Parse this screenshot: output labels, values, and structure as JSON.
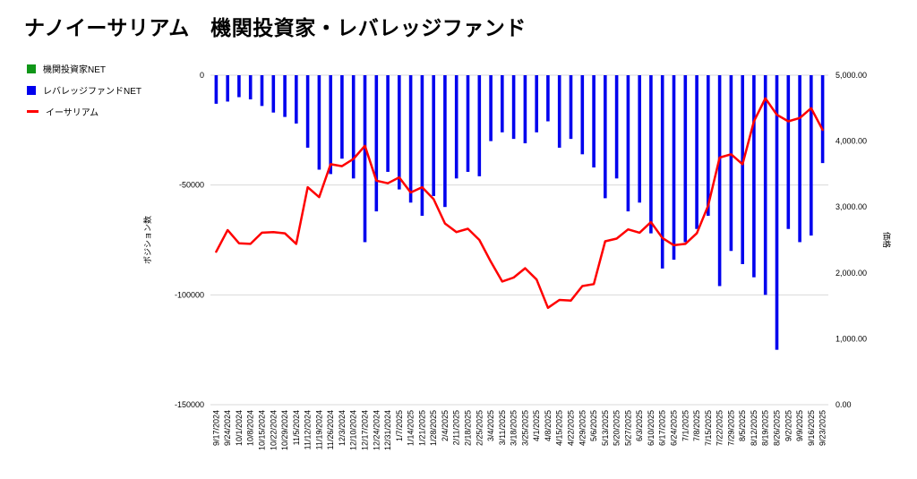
{
  "title": "ナノイーサリアム　機関投資家・レバレッジファンド",
  "legend": [
    {
      "label": "機関投資家NET",
      "color": "#109618",
      "marker": "square"
    },
    {
      "label": "レバレッジファンドNET",
      "color": "#0000ee",
      "marker": "square"
    },
    {
      "label": "イーサリアム",
      "color": "#ff0000",
      "marker": "line"
    }
  ],
  "chart_data": {
    "type": "bar",
    "title": "ナノイーサリアム　機関投資家・レバレッジファンド",
    "grid": "horizontal",
    "legend_position": "top-left",
    "categories": [
      "9/17/2024",
      "9/24/2024",
      "10/1/2024",
      "10/8/2024",
      "10/15/2024",
      "10/22/2024",
      "10/29/2024",
      "11/5/2024",
      "11/12/2024",
      "11/19/2024",
      "11/26/2024",
      "12/3/2024",
      "12/10/2024",
      "12/17/2024",
      "12/24/2024",
      "12/31/2024",
      "1/7/2025",
      "1/14/2025",
      "1/21/2025",
      "1/28/2025",
      "2/4/2025",
      "2/11/2025",
      "2/18/2025",
      "2/25/2025",
      "3/4/2025",
      "3/11/2025",
      "3/18/2025",
      "3/25/2025",
      "4/1/2025",
      "4/8/2025",
      "4/15/2025",
      "4/22/2025",
      "4/29/2025",
      "5/6/2025",
      "5/13/2025",
      "5/20/2025",
      "5/27/2025",
      "6/3/2025",
      "6/10/2025",
      "6/17/2025",
      "6/24/2025",
      "7/1/2025",
      "7/8/2025",
      "7/15/2025",
      "7/22/2025",
      "7/29/2025",
      "8/5/2025",
      "8/12/2025",
      "8/19/2025",
      "8/26/2025",
      "9/2/2025",
      "9/9/2025",
      "9/16/2025",
      "9/23/2025"
    ],
    "series": [
      {
        "name": "機関投資家NET",
        "type": "bar",
        "axis": "left",
        "color": "#109618",
        "values": [
          0,
          0,
          0,
          0,
          0,
          0,
          0,
          0,
          0,
          0,
          0,
          0,
          0,
          0,
          0,
          0,
          0,
          0,
          0,
          0,
          0,
          0,
          0,
          0,
          0,
          0,
          0,
          0,
          0,
          0,
          0,
          0,
          0,
          0,
          0,
          0,
          0,
          0,
          0,
          0,
          0,
          0,
          0,
          0,
          0,
          0,
          0,
          0,
          0,
          0,
          0,
          0,
          0,
          0
        ]
      },
      {
        "name": "レバレッジファンドNET",
        "type": "bar",
        "axis": "left",
        "color": "#0000ee",
        "values": [
          -13000,
          -12000,
          -10000,
          -11000,
          -14000,
          -17000,
          -19000,
          -22000,
          -33000,
          -43000,
          -45000,
          -38000,
          -47000,
          -76000,
          -62000,
          -44000,
          -52000,
          -58000,
          -64000,
          -55000,
          -60000,
          -47000,
          -44000,
          -46000,
          -30000,
          -26000,
          -29000,
          -31000,
          -26000,
          -21000,
          -33000,
          -29000,
          -36000,
          -42000,
          -56000,
          -47000,
          -62000,
          -58000,
          -72000,
          -88000,
          -84000,
          -76000,
          -70000,
          -64000,
          -96000,
          -80000,
          -86000,
          -92000,
          -100000,
          -125000,
          -70000,
          -76000,
          -73000,
          -40000
        ]
      },
      {
        "name": "イーサリアム",
        "type": "line",
        "axis": "right",
        "color": "#ff0000",
        "values": [
          2320,
          2650,
          2450,
          2440,
          2610,
          2620,
          2600,
          2440,
          3300,
          3150,
          3650,
          3620,
          3730,
          3930,
          3400,
          3360,
          3450,
          3220,
          3300,
          3120,
          2750,
          2620,
          2670,
          2500,
          2170,
          1870,
          1930,
          2070,
          1900,
          1470,
          1590,
          1580,
          1800,
          1830,
          2480,
          2520,
          2660,
          2610,
          2770,
          2530,
          2420,
          2440,
          2600,
          3020,
          3750,
          3800,
          3650,
          4300,
          4650,
          4400,
          4300,
          4350,
          4500,
          4170
        ]
      }
    ],
    "left_axis": {
      "title": "ポジション数",
      "min": -150000,
      "max": 0,
      "ticks": [
        {
          "value": 0,
          "label": "0"
        },
        {
          "value": -50000,
          "label": "-50000"
        },
        {
          "value": -100000,
          "label": "-100000"
        },
        {
          "value": -150000,
          "label": "-150000"
        }
      ]
    },
    "right_axis": {
      "title": "価格",
      "min": 0,
      "max": 5000,
      "ticks": [
        {
          "value": 5000,
          "label": "5,000.00"
        },
        {
          "value": 4000,
          "label": "4,000.00"
        },
        {
          "value": 3000,
          "label": "3,000.00"
        },
        {
          "value": 2000,
          "label": "2,000.00"
        },
        {
          "value": 1000,
          "label": "1,000.00"
        },
        {
          "value": 0,
          "label": "0.00"
        }
      ]
    },
    "grid_color": "#dadada"
  }
}
